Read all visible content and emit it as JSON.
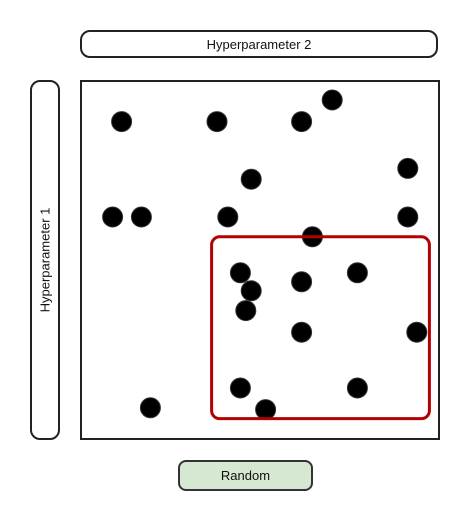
{
  "labels": {
    "x_axis": "Hyperparameter 2",
    "y_axis": "Hyperparameter 1"
  },
  "button": {
    "label": "Random"
  },
  "colors": {
    "point": "#000000",
    "highlight": "#b30000",
    "button_bg": "#d7e8d2"
  },
  "chart_data": {
    "type": "scatter",
    "title": "",
    "xlabel": "Hyperparameter 2",
    "ylabel": "Hyperparameter 1",
    "xlim": [
      0,
      1
    ],
    "ylim": [
      0,
      1
    ],
    "points": [
      {
        "x": 0.11,
        "y": 0.89
      },
      {
        "x": 0.375,
        "y": 0.89
      },
      {
        "x": 0.61,
        "y": 0.89
      },
      {
        "x": 0.695,
        "y": 0.95
      },
      {
        "x": 0.47,
        "y": 0.73
      },
      {
        "x": 0.905,
        "y": 0.76
      },
      {
        "x": 0.085,
        "y": 0.625
      },
      {
        "x": 0.165,
        "y": 0.625
      },
      {
        "x": 0.405,
        "y": 0.625
      },
      {
        "x": 0.905,
        "y": 0.625
      },
      {
        "x": 0.64,
        "y": 0.57
      },
      {
        "x": 0.44,
        "y": 0.47
      },
      {
        "x": 0.47,
        "y": 0.42
      },
      {
        "x": 0.455,
        "y": 0.365
      },
      {
        "x": 0.61,
        "y": 0.445
      },
      {
        "x": 0.765,
        "y": 0.47
      },
      {
        "x": 0.61,
        "y": 0.305
      },
      {
        "x": 0.93,
        "y": 0.305
      },
      {
        "x": 0.44,
        "y": 0.15
      },
      {
        "x": 0.765,
        "y": 0.15
      },
      {
        "x": 0.19,
        "y": 0.095
      },
      {
        "x": 0.51,
        "y": 0.09
      }
    ],
    "highlight_region": {
      "x_range": [
        0.36,
        0.965
      ],
      "y_range": [
        0.065,
        0.57
      ]
    },
    "grid": false,
    "legend": "none"
  }
}
